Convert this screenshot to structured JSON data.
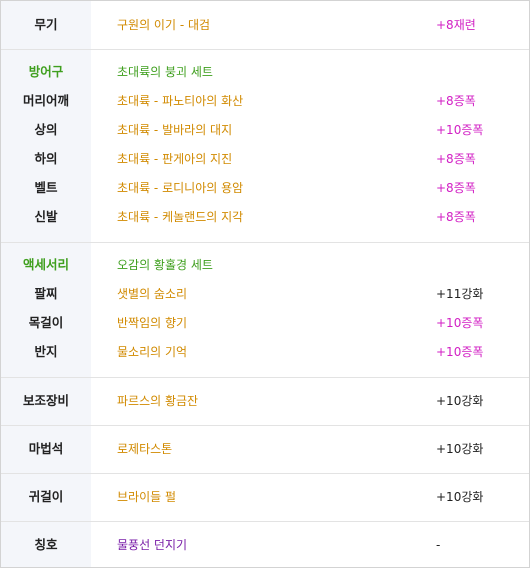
{
  "sections": {
    "weapon": {
      "label": "무기",
      "item": "구원의 이기 - 대검",
      "enh": "+8재련"
    },
    "armor": {
      "label": "방어구",
      "set": "초대륙의 붕괴 세트",
      "rows": [
        {
          "label": "머리어깨",
          "item": "초대륙 - 파노티아의 화산",
          "enh": "+8증폭"
        },
        {
          "label": "상의",
          "item": "초대륙 - 발바라의 대지",
          "enh": "+10증폭"
        },
        {
          "label": "하의",
          "item": "초대륙 - 판게아의 지진",
          "enh": "+8증폭"
        },
        {
          "label": "벨트",
          "item": "초대륙 - 로디니아의 용암",
          "enh": "+8증폭"
        },
        {
          "label": "신발",
          "item": "초대륙 - 케놀랜드의 지각",
          "enh": "+8증폭"
        }
      ]
    },
    "accessory": {
      "label": "액세서리",
      "set": "오감의 황홀경 세트",
      "rows": [
        {
          "label": "팔찌",
          "item": "샛별의 숨소리",
          "enh": "+11강화"
        },
        {
          "label": "목걸이",
          "item": "반짝임의 향기",
          "enh": "+10증폭"
        },
        {
          "label": "반지",
          "item": "물소리의 기억",
          "enh": "+10증폭"
        }
      ]
    },
    "sub": {
      "label": "보조장비",
      "item": "파르스의 황금잔",
      "enh": "+10강화"
    },
    "magic": {
      "label": "마법석",
      "item": "로제타스톤",
      "enh": "+10강화"
    },
    "earring": {
      "label": "귀걸이",
      "item": "브라이들 펄",
      "enh": "+10강화"
    },
    "title": {
      "label": "칭호",
      "item": "물풍선 던지기",
      "enh": "-"
    }
  },
  "colors": {
    "label_bg": "#f4f6fa",
    "item": "#d18a00",
    "set": "#3f9f1e",
    "amplify": "#d21fc4",
    "title_item": "#7a1fa8"
  }
}
